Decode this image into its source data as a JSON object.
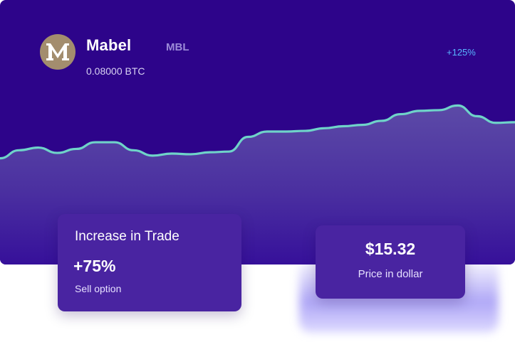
{
  "coin": {
    "name": "Mabel",
    "ticker": "MBL",
    "amount": "0.08000 BTC",
    "change": "+125%",
    "logo_icon": "mabel-m-logo-icon",
    "logo_letter": "M"
  },
  "trade_card": {
    "title": "Increase in Trade",
    "percent": "+75%",
    "subtitle": "Sell option"
  },
  "price_card": {
    "value": "$15.32",
    "label": "Price in dollar"
  },
  "colors": {
    "card_bg": "#2d048a",
    "line": "#6fd3c9",
    "panel_bg": "#4924a1",
    "accent_blue": "#58b6ff",
    "logo_bg": "#a38d6e"
  },
  "chart_data": {
    "type": "area",
    "series": [
      {
        "values": [
          0.1,
          0.22,
          0.26,
          0.18,
          0.24,
          0.34,
          0.34,
          0.22,
          0.14,
          0.17,
          0.16,
          0.19,
          0.2,
          0.42,
          0.5,
          0.5,
          0.51,
          0.55,
          0.58,
          0.6,
          0.66,
          0.76,
          0.81,
          0.82,
          0.89,
          0.73,
          0.63,
          0.64
        ]
      }
    ]
  }
}
